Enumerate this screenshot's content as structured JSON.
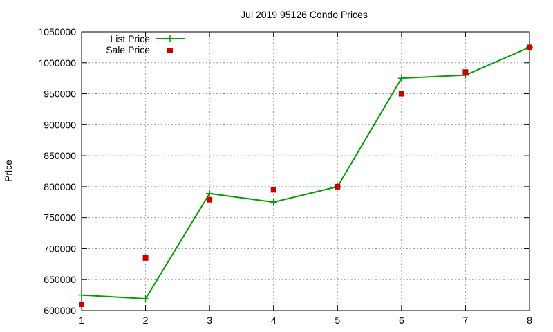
{
  "chart_data": {
    "type": "line",
    "title": "Jul 2019 95126 Condo Prices",
    "xlabel": "",
    "ylabel": "Price",
    "x": [
      1,
      2,
      3,
      4,
      5,
      6,
      7,
      8
    ],
    "xlim": [
      1,
      8
    ],
    "ylim": [
      600000,
      1050000
    ],
    "xticks": [
      "1",
      "2",
      "3",
      "4",
      "5",
      "6",
      "7",
      "8"
    ],
    "yticks": [
      "600000",
      "650000",
      "700000",
      "750000",
      "800000",
      "850000",
      "900000",
      "950000",
      "1000000",
      "1050000"
    ],
    "grid": true,
    "legend_position": "top-left",
    "series": [
      {
        "name": "List Price",
        "style": "line-with-plus-markers",
        "color": "#009e00",
        "values": [
          625000,
          619000,
          789000,
          775000,
          800000,
          975000,
          980000,
          1025000
        ]
      },
      {
        "name": "Sale Price",
        "style": "square-markers",
        "color": "#cc0000",
        "values": [
          610000,
          685000,
          779000,
          795000,
          800000,
          950000,
          985000,
          1025000
        ]
      }
    ]
  }
}
